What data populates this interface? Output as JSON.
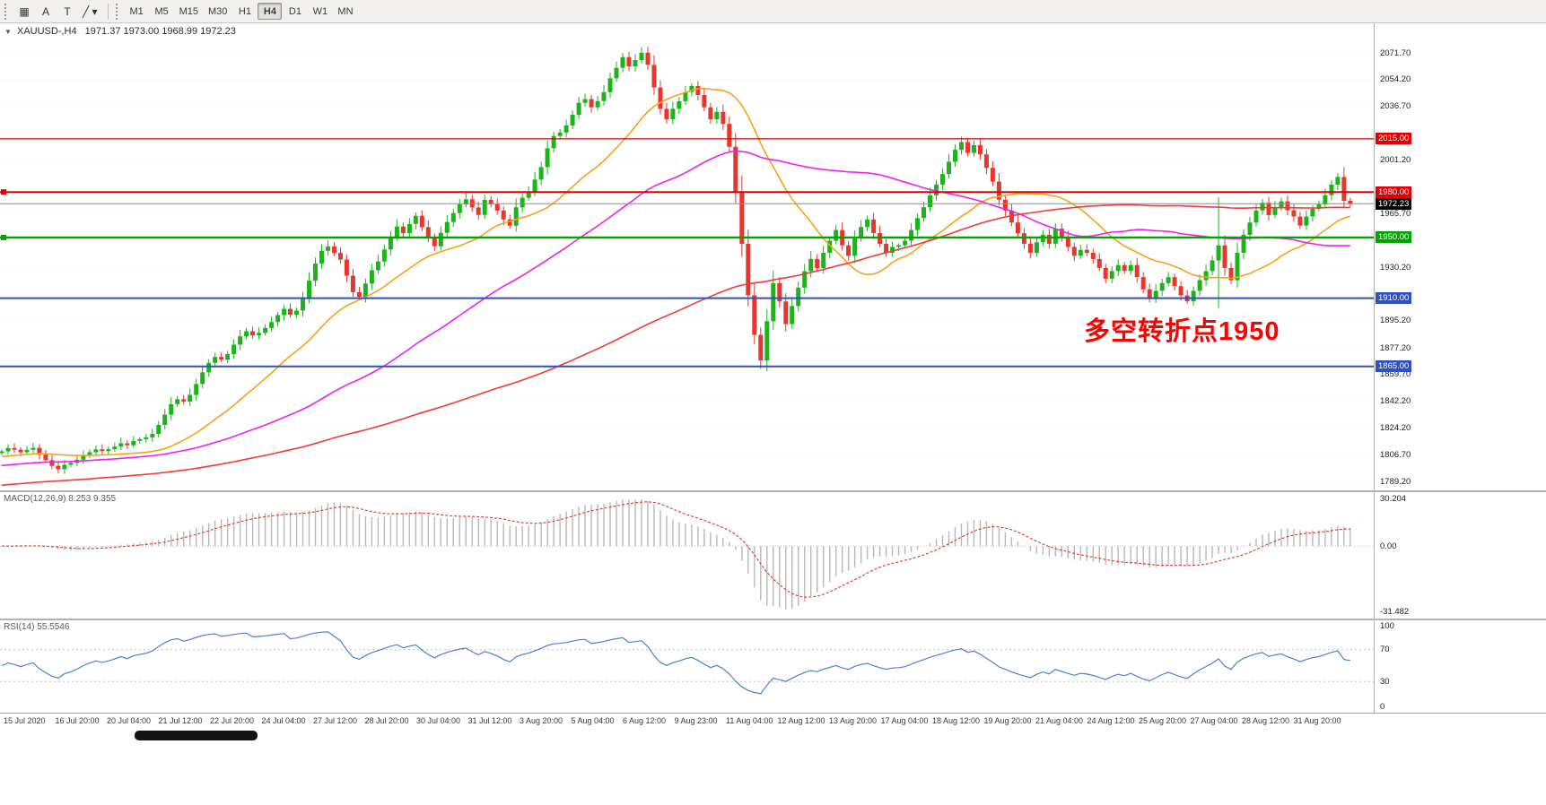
{
  "toolbar": {
    "tools": [
      {
        "name": "chart-grid-icon",
        "glyph": "▦"
      },
      {
        "name": "text-tool-button",
        "glyph": "A"
      },
      {
        "name": "type-tool-button",
        "glyph": "T"
      },
      {
        "name": "shapes-dropdown",
        "glyph": "╱",
        "caret": "▾"
      }
    ],
    "timeframes": [
      {
        "label": "M1",
        "active": false
      },
      {
        "label": "M5",
        "active": false
      },
      {
        "label": "M15",
        "active": false
      },
      {
        "label": "M30",
        "active": false
      },
      {
        "label": "H1",
        "active": false
      },
      {
        "label": "H4",
        "active": true
      },
      {
        "label": "D1",
        "active": false
      },
      {
        "label": "W1",
        "active": false
      },
      {
        "label": "MN",
        "active": false
      }
    ]
  },
  "chart": {
    "collapse_glyph": "▼",
    "title_symbol": "XAUUSD-,H4",
    "title_ohlc": "1971.37 1973.00 1968.99 1972.23",
    "annotation": {
      "text": "多空转折点1950",
      "color": "#ff0000"
    },
    "current_price": {
      "value": 1972.23,
      "label": "1972.23",
      "bg": "#000000",
      "line_color": "#8a8a8a"
    },
    "levels": [
      {
        "value": 2015.0,
        "label": "2015.00",
        "color": "#e00000",
        "width": 1.2,
        "handle": false
      },
      {
        "value": 1980.0,
        "label": "1980.00",
        "color": "#e00000",
        "width": 2,
        "handle": true
      },
      {
        "value": 1950.0,
        "label": "1950.00",
        "color": "#00a400",
        "width": 2.4,
        "handle": true
      },
      {
        "value": 1910.0,
        "label": "1910.00",
        "color": "#3050c0",
        "width": 2,
        "handle": false
      },
      {
        "value": 1865.0,
        "label": "1865.00",
        "color": "#3050c0",
        "width": 2,
        "handle": false
      }
    ],
    "axis_labels": [
      {
        "value": 2071.7,
        "text": "2071.70"
      },
      {
        "value": 2054.2,
        "text": "2054.20"
      },
      {
        "value": 2036.7,
        "text": "2036.70"
      },
      {
        "value": 2001.2,
        "text": "2001.20"
      },
      {
        "value": 1965.7,
        "text": "1965.70"
      },
      {
        "value": 1930.2,
        "text": "1930.20"
      },
      {
        "value": 1895.2,
        "text": "1895.20"
      },
      {
        "value": 1877.2,
        "text": "1877.20"
      },
      {
        "value": 1859.7,
        "text": "1859.70"
      },
      {
        "value": 1842.2,
        "text": "1842.20"
      },
      {
        "value": 1824.2,
        "text": "1824.20"
      },
      {
        "value": 1806.7,
        "text": "1806.70"
      },
      {
        "value": 1789.2,
        "text": "1789.20"
      }
    ],
    "candle_colors": {
      "up": "#1db31d",
      "down": "#e6362d"
    },
    "ma_lines": [
      {
        "name": "ma-fast-line",
        "period": 21,
        "color": "#f6a21d"
      },
      {
        "name": "ma-mid-line",
        "period": 55,
        "color": "#ee22ee"
      },
      {
        "name": "ma-slow-line",
        "period": 130,
        "color": "#f23a3a"
      }
    ],
    "closes": [
      1809.0,
      1811.2,
      1810.1,
      1808.4,
      1810.0,
      1811.3,
      1806.8,
      1803.2,
      1799.4,
      1797.2,
      1800.1,
      1801.4,
      1803.5,
      1806.2,
      1808.4,
      1810.3,
      1809.2,
      1810.4,
      1812.1,
      1814.3,
      1813.0,
      1815.8,
      1817.0,
      1818.2,
      1820.5,
      1826.4,
      1833.2,
      1840.1,
      1843.3,
      1841.8,
      1846.2,
      1853.4,
      1861.1,
      1867.3,
      1871.2,
      1869.4,
      1873.1,
      1879.3,
      1884.8,
      1888.2,
      1885.4,
      1887.1,
      1890.3,
      1894.2,
      1898.8,
      1902.9,
      1899.1,
      1901.8,
      1909.8,
      1921.5,
      1932.8,
      1941.2,
      1944.1,
      1939.8,
      1935.4,
      1924.8,
      1913.9,
      1910.8,
      1919.6,
      1928.4,
      1934.2,
      1942.1,
      1950.3,
      1957.2,
      1952.8,
      1958.9,
      1964.3,
      1956.8,
      1949.9,
      1944.2,
      1953.1,
      1960.2,
      1966.1,
      1971.8,
      1975.2,
      1969.8,
      1964.9,
      1974.8,
      1971.9,
      1967.8,
      1961.9,
      1957.8,
      1969.9,
      1976.2,
      1980.4,
      1988.2,
      1996.4,
      2008.8,
      2016.9,
      2019.2,
      2023.8,
      2030.9,
      2038.8,
      2041.2,
      2035.8,
      2039.9,
      2045.8,
      2054.9,
      2061.8,
      2068.9,
      2062.8,
      2066.9,
      2071.8,
      2063.8,
      2048.9,
      2034.8,
      2027.9,
      2034.9,
      2039.8,
      2045.9,
      2049.8,
      2043.9,
      2035.8,
      2027.9,
      2032.8,
      2024.9,
      2009.8,
      1979.9,
      1945.8,
      1911.9,
      1885.8,
      1868.9,
      1894.8,
      1919.9,
      1907.8,
      1892.9,
      1904.8,
      1916.9,
      1927.8,
      1935.9,
      1929.8,
      1939.9,
      1947.8,
      1954.9,
      1944.8,
      1937.9,
      1949.8,
      1956.9,
      1961.8,
      1952.9,
      1945.8,
      1939.9,
      1943.8,
      1944.9,
      1947.8,
      1954.9,
      1962.8,
      1969.9,
      1977.8,
      1984.9,
      1991.8,
      1999.9,
      2007.8,
      2012.9,
      2005.8,
      2010.9,
      2004.8,
      1995.9,
      1986.8,
      1974.9,
      1967.8,
      1959.9,
      1952.8,
      1945.9,
      1939.8,
      1946.9,
      1951.8,
      1945.9,
      1955.8,
      1949.9,
      1943.8,
      1937.9,
      1941.8,
      1939.9,
      1935.8,
      1929.9,
      1922.8,
      1927.9,
      1931.8,
      1927.9,
      1931.8,
      1923.9,
      1915.8,
      1909.9,
      1914.8,
      1919.9,
      1923.8,
      1917.9,
      1911.8,
      1907.9,
      1914.8,
      1921.9,
      1927.8,
      1934.9,
      1944.8,
      1929.9,
      1921.8,
      1939.9,
      1951.8,
      1959.9,
      1967.8,
      1972.9,
      1964.8,
      1969.9,
      1973.8,
      1967.9,
      1963.8,
      1957.9,
      1963.8,
      1968.9,
      1971.8,
      1977.9,
      1984.8,
      1989.9,
      1974.2,
      1972.23
    ],
    "overrides": {
      "9": {
        "low": 1794.5
      },
      "102": {
        "high": 2075.5
      },
      "121": {
        "low": 1863.3
      },
      "153": {
        "high": 2016.5
      },
      "194": {
        "high": 1976.5,
        "low": 1903.5
      },
      "213": {
        "high": 1992.5
      }
    }
  },
  "macd": {
    "label": "MACD(12,26,9) 8.253 9.355",
    "fast": 12,
    "slow": 26,
    "signal": 9,
    "axis_labels": {
      "top": "30.204",
      "zero": "0.00",
      "bottom": "-31.482"
    },
    "hist_color": "#b8b8b8",
    "signal_color": "#e03030"
  },
  "rsi": {
    "label": "RSI(14) 55.5546",
    "period": 14,
    "color": "#4f7fd0",
    "levels": [
      70,
      30
    ],
    "axis_labels": {
      "top": "100",
      "upper": "70",
      "lower": "30",
      "bottom": "0"
    }
  },
  "time_axis": [
    "15 Jul 2020",
    "16 Jul 20:00",
    "20 Jul 04:00",
    "21 Jul 12:00",
    "22 Jul 20:00",
    "24 Jul 04:00",
    "27 Jul 12:00",
    "28 Jul 20:00",
    "30 Jul 04:00",
    "31 Jul 12:00",
    "3 Aug 20:00",
    "5 Aug 04:00",
    "6 Aug 12:00",
    "9 Aug 23:00",
    "11 Aug 04:00",
    "12 Aug 12:00",
    "13 Aug 20:00",
    "17 Aug 04:00",
    "18 Aug 12:00",
    "19 Aug 20:00",
    "21 Aug 04:00",
    "24 Aug 12:00",
    "25 Aug 20:00",
    "27 Aug 04:00",
    "28 Aug 12:00",
    "31 Aug 20:00"
  ]
}
